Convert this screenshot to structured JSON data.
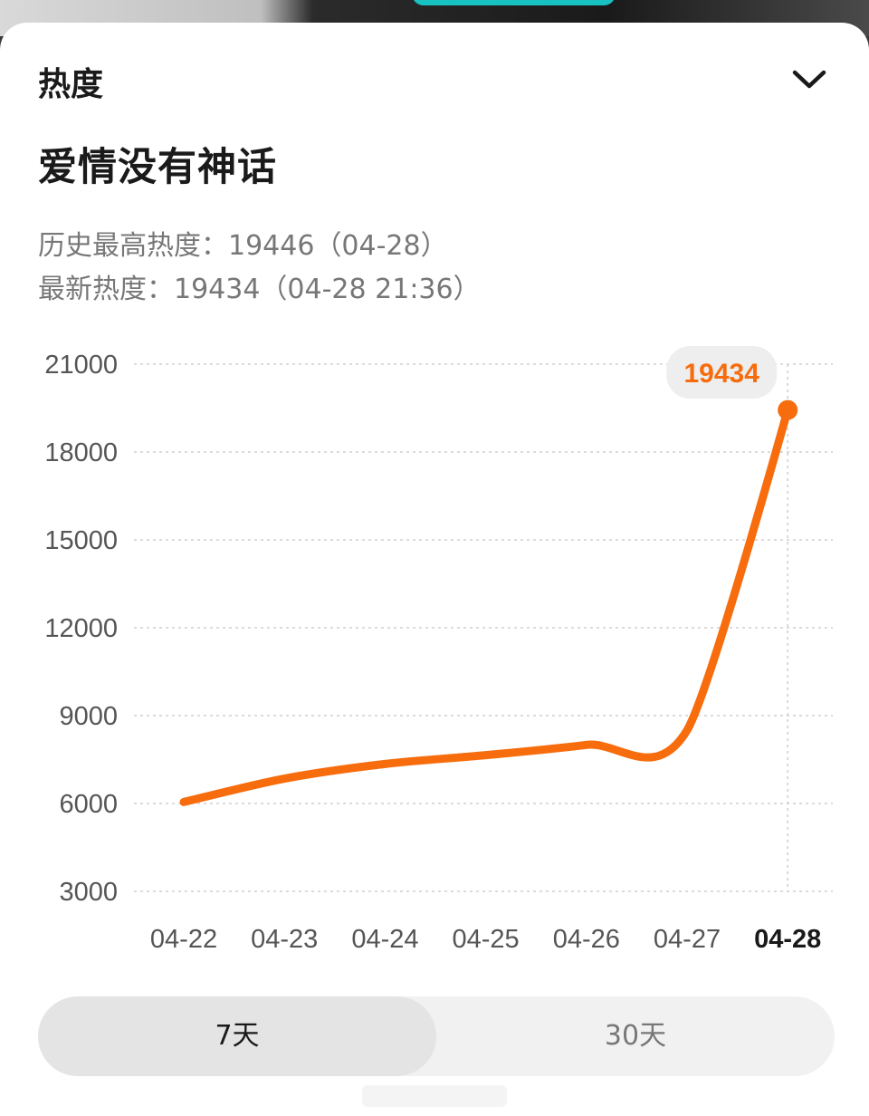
{
  "header": {
    "title": "热度",
    "collapse_icon": "chevron-down-icon"
  },
  "topic": {
    "name": "爱情没有神话"
  },
  "stats": {
    "peak": "历史最高热度：19446（04-28）",
    "latest": "最新热度：19434（04-28 21:36）"
  },
  "chart_data": {
    "type": "line",
    "title": "",
    "xlabel": "",
    "ylabel": "",
    "categories": [
      "04-22",
      "04-23",
      "04-24",
      "04-25",
      "04-26",
      "04-27",
      "04-28"
    ],
    "x_ticks": [
      "04-22",
      "04-23",
      "04-24",
      "04-25",
      "04-26",
      "04-27",
      "04-28"
    ],
    "y_ticks": [
      3000,
      6000,
      9000,
      12000,
      15000,
      18000,
      21000
    ],
    "ylim": [
      3000,
      21000
    ],
    "grid": true,
    "series": [
      {
        "values": [
          6050,
          6850,
          7350,
          7650,
          8000,
          8500,
          19434
        ],
        "color": "#f76c0c"
      }
    ],
    "highlight": {
      "label": "19434",
      "value": 19434,
      "category": "04-28"
    }
  },
  "tabs": [
    {
      "label": "7天",
      "active": true
    },
    {
      "label": "30天",
      "active": false
    }
  ],
  "colors": {
    "accent": "#f76c0c",
    "badge_bg": "#eeeeee",
    "grid": "#cfcfcf"
  }
}
